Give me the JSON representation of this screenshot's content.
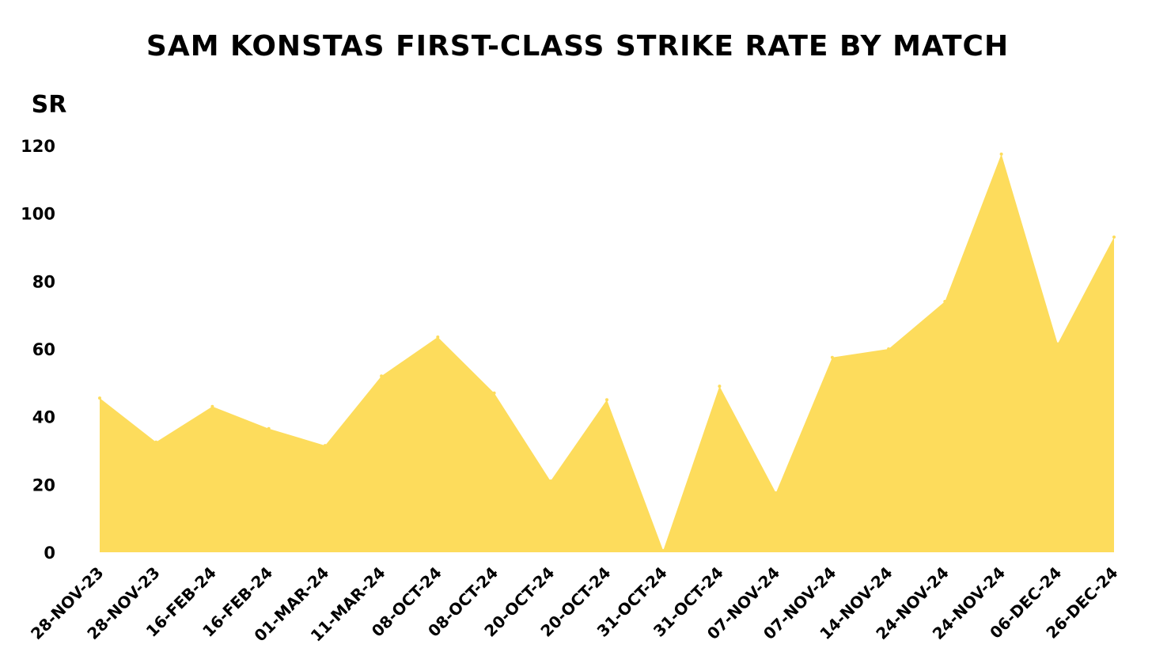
{
  "chart_data": {
    "type": "area",
    "title": "SAM KONSTAS FIRST-CLASS STRIKE RATE BY MATCH",
    "ylabel": "SR",
    "xlabel": "",
    "ylim": [
      0,
      120
    ],
    "yticks": [
      0,
      20,
      40,
      60,
      80,
      100,
      120
    ],
    "grid": false,
    "legend": "none",
    "fill_color": "#fddc5c",
    "categories": [
      "28-NOV-23",
      "28-NOV-23",
      "16-FEB-24",
      "16-FEB-24",
      "01-MAR-24",
      "11-MAR-24",
      "08-OCT-24",
      "08-OCT-24",
      "20-OCT-24",
      "20-OCT-24",
      "31-OCT-24",
      "31-OCT-24",
      "07-NOV-24",
      "07-NOV-24",
      "14-NOV-24",
      "24-NOV-24",
      "24-NOV-24",
      "06-DEC-24",
      "26-DEC-24"
    ],
    "values": [
      45.5,
      32.5,
      43,
      36.5,
      31.5,
      52,
      63.5,
      47,
      21,
      45,
      0.5,
      49,
      17.5,
      57.5,
      60,
      74,
      117.5,
      61.5,
      93
    ]
  }
}
